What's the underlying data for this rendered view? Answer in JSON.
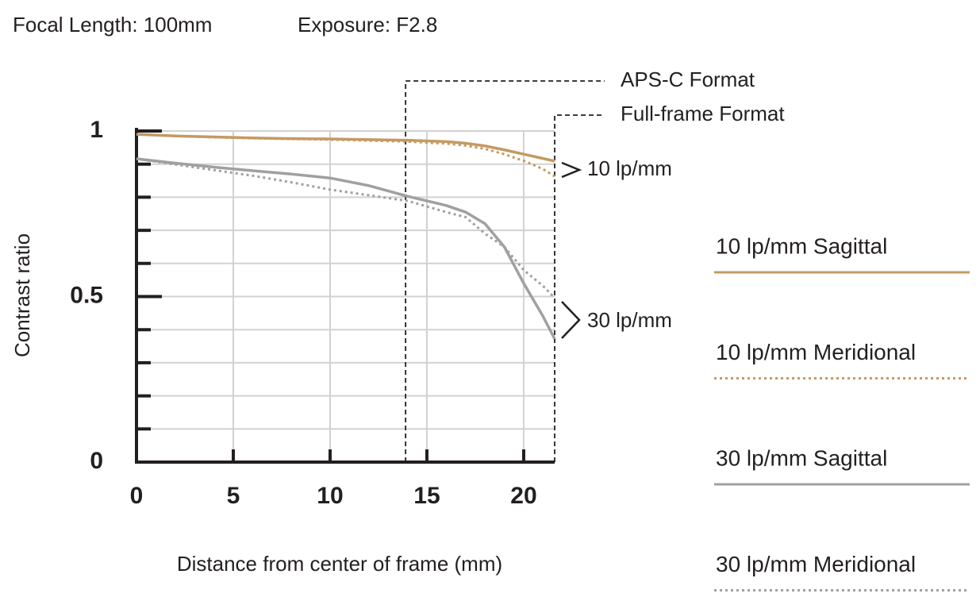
{
  "chart_data": {
    "type": "line",
    "title_items": [
      "Focal Length: 100mm",
      "Exposure: F2.8"
    ],
    "xlabel": "Distance from center of frame (mm)",
    "ylabel": "Contrast ratio",
    "x": [
      0,
      2,
      4,
      6,
      8,
      10,
      12,
      14,
      16,
      17,
      18,
      19,
      20,
      21,
      21.6
    ],
    "series": [
      {
        "name": "10 lp/mm Sagittal",
        "color": "#c49a62",
        "style": "solid",
        "values": [
          0.99,
          0.985,
          0.982,
          0.979,
          0.977,
          0.976,
          0.974,
          0.972,
          0.968,
          0.963,
          0.955,
          0.943,
          0.93,
          0.917,
          0.909
        ]
      },
      {
        "name": "10 lp/mm Meridional",
        "color": "#c49a62",
        "style": "dotted",
        "values": [
          0.99,
          0.985,
          0.981,
          0.978,
          0.976,
          0.974,
          0.971,
          0.968,
          0.962,
          0.956,
          0.946,
          0.93,
          0.91,
          0.885,
          0.863
        ]
      },
      {
        "name": "30 lp/mm Sagittal",
        "color": "#a0a0a0",
        "style": "solid",
        "values": [
          0.916,
          0.903,
          0.891,
          0.88,
          0.87,
          0.858,
          0.835,
          0.803,
          0.775,
          0.755,
          0.72,
          0.65,
          0.54,
          0.44,
          0.372
        ]
      },
      {
        "name": "30 lp/mm Meridional",
        "color": "#a0a0a0",
        "style": "dotted",
        "values": [
          0.916,
          0.899,
          0.882,
          0.865,
          0.845,
          0.823,
          0.806,
          0.789,
          0.755,
          0.74,
          0.69,
          0.65,
          0.58,
          0.532,
          0.496
        ]
      }
    ],
    "xlim": [
      0,
      21.6
    ],
    "ylim": [
      0,
      1
    ],
    "xticks": [
      0,
      5,
      10,
      15,
      20
    ],
    "yticks": [
      0,
      0.5,
      1
    ],
    "yminor_ticks": [
      0.1,
      0.2,
      0.3,
      0.4,
      0.6,
      0.7,
      0.8,
      0.9
    ],
    "grid": true,
    "markers": [
      {
        "label": "APS-C Format",
        "x": 13.9
      },
      {
        "label": "Full-frame Format",
        "x": 21.6
      }
    ],
    "annotations": [
      "10 lp/mm",
      "30 lp/mm"
    ]
  }
}
